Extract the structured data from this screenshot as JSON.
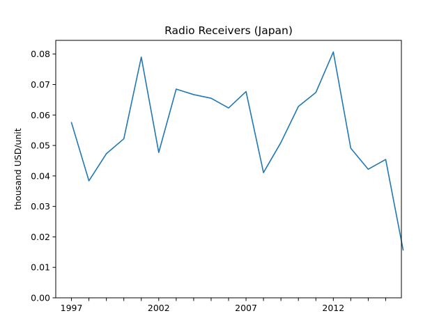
{
  "chart_data": {
    "type": "line",
    "title": "Radio Receivers (Japan)",
    "xlabel": "",
    "ylabel": "thousand USD/unit",
    "xlim": [
      1996.1,
      2015.9
    ],
    "ylim": [
      0,
      0.0845
    ],
    "x_ticks": [
      1997,
      1998,
      1999,
      2000,
      2001,
      2002,
      2003,
      2004,
      2005,
      2006,
      2007,
      2008,
      2009,
      2010,
      2011,
      2012,
      2013,
      2014,
      2015
    ],
    "x_tick_labels": [
      "1997",
      "",
      "",
      "",
      "",
      "2002",
      "",
      "",
      "",
      "",
      "2007",
      "",
      "",
      "",
      "",
      "2012",
      "",
      "",
      ""
    ],
    "y_ticks": [
      0,
      0.01,
      0.02,
      0.03,
      0.04,
      0.05,
      0.06,
      0.07,
      0.08
    ],
    "y_tick_labels": [
      "0.00",
      "0.01",
      "0.02",
      "0.03",
      "0.04",
      "0.05",
      "0.06",
      "0.07",
      "0.08"
    ],
    "grid": false,
    "series": [
      {
        "color": "#1f77b4",
        "x": [
          1997,
          1998,
          1999,
          2000,
          2001,
          2002,
          2003,
          2004,
          2005,
          2006,
          2007,
          2008,
          2009,
          2010,
          2011,
          2012,
          2013,
          2014,
          2015,
          2016
        ],
        "values": [
          0.0575,
          0.0384,
          0.0473,
          0.0522,
          0.079,
          0.0477,
          0.0685,
          0.0667,
          0.0655,
          0.0623,
          0.0677,
          0.0411,
          0.051,
          0.0628,
          0.0674,
          0.0807,
          0.0491,
          0.0422,
          0.0454,
          0.0157
        ]
      }
    ]
  }
}
